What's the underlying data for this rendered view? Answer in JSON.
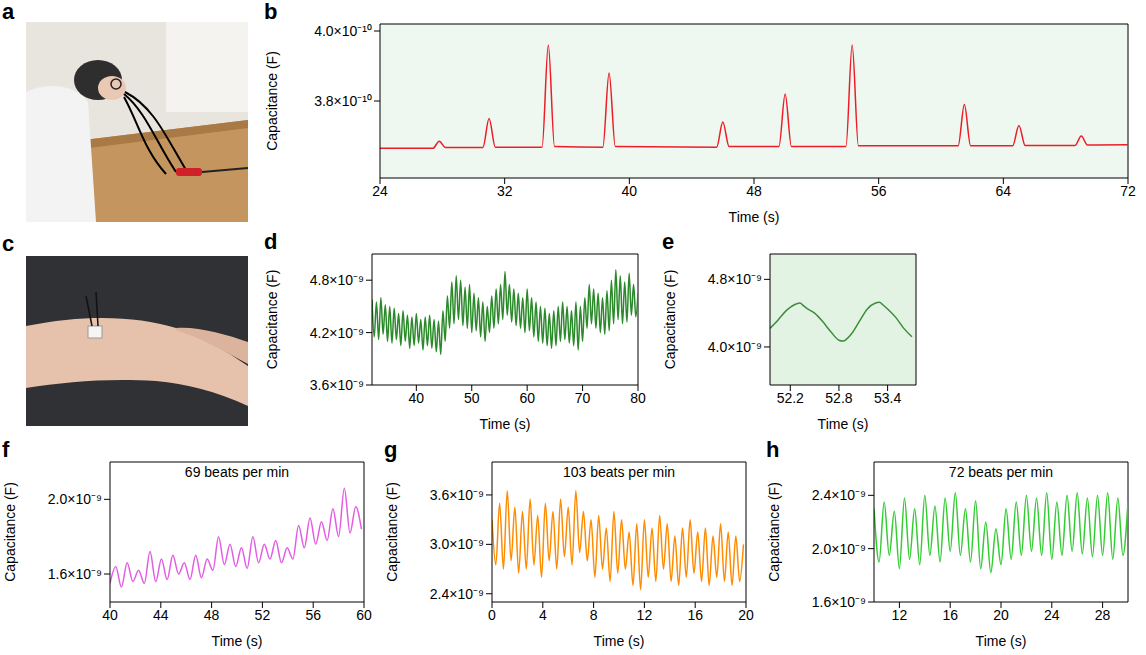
{
  "chart_data": [
    {
      "type": "image",
      "panel": "a"
    },
    {
      "type": "line",
      "panel": "b",
      "xlabel": "Time (s)",
      "ylabel": "Capacitance (F)",
      "color": "#ee1c25",
      "x": [
        24,
        27.4,
        27.8,
        28.2,
        30.6,
        31.0,
        31.4,
        34.4,
        34.8,
        35.2,
        38.3,
        38.7,
        39.1,
        45.6,
        46.0,
        46.4,
        49.6,
        50.0,
        50.4,
        53.9,
        54.3,
        54.7,
        61.1,
        61.5,
        61.9,
        64.6,
        65.0,
        65.4,
        68.6,
        69.0,
        69.4,
        72
      ],
      "values": [
        3.665e-10,
        3.665e-10,
        3.685e-10,
        3.667e-10,
        3.667e-10,
        3.75e-10,
        3.668e-10,
        3.668e-10,
        3.96e-10,
        3.67e-10,
        3.668e-10,
        3.88e-10,
        3.67e-10,
        3.668e-10,
        3.74e-10,
        3.67e-10,
        3.67e-10,
        3.82e-10,
        3.67e-10,
        3.67e-10,
        3.96e-10,
        3.672e-10,
        3.672e-10,
        3.79e-10,
        3.672e-10,
        3.672e-10,
        3.73e-10,
        3.673e-10,
        3.673e-10,
        3.7e-10,
        3.674e-10,
        3.675e-10
      ],
      "xlim": [
        24,
        72
      ],
      "xticks": [
        24,
        32,
        40,
        48,
        56,
        64,
        72
      ],
      "ylim": [
        3.58e-10,
        4.02e-10
      ],
      "yticks": [
        {
          "value": 3.8e-10,
          "label": "3.8×10⁻¹⁰"
        },
        {
          "value": 4e-10,
          "label": "4.0×10⁻¹⁰"
        }
      ]
    },
    {
      "type": "image",
      "panel": "c"
    },
    {
      "type": "line",
      "panel": "d",
      "xlabel": "Time (s)",
      "ylabel": "Capacitance (F)",
      "color": "#2a8a2a",
      "x": [
        32,
        32.4,
        32.8,
        33.2,
        33.6,
        34,
        34.4,
        34.8,
        35.2,
        35.6,
        36,
        36.4,
        36.8,
        37.2,
        37.6,
        38,
        38.4,
        38.8,
        39.2,
        39.6,
        40,
        40.4,
        40.8,
        41.2,
        41.6,
        42,
        42.4,
        42.8,
        43.2,
        43.6,
        44,
        44.4,
        44.8,
        45.2,
        45.6,
        46,
        46.4,
        46.8,
        47.2,
        47.6,
        48,
        48.4,
        48.8,
        49.2,
        49.6,
        50,
        50.4,
        50.8,
        51.2,
        51.6,
        52,
        52.4,
        52.8,
        53.2,
        53.6,
        54,
        54.4,
        54.8,
        55.2,
        55.6,
        56,
        56.4,
        56.8,
        57.2,
        57.6,
        58,
        58.4,
        58.8,
        59.2,
        59.6,
        60,
        60.4,
        60.8,
        61.2,
        61.6,
        62,
        62.4,
        62.8,
        63.2,
        63.6,
        64,
        64.4,
        64.8,
        65.2,
        65.6,
        66,
        66.4,
        66.8,
        67.2,
        67.6,
        68,
        68.4,
        68.8,
        69.2,
        69.6,
        70,
        70.4,
        70.8,
        71.2,
        71.6,
        72,
        72.4,
        72.8,
        73.2,
        73.6,
        74,
        74.4,
        74.8,
        75.2,
        75.6,
        76,
        76.4,
        76.8,
        77.2,
        77.6,
        78,
        78.4,
        78.8,
        79.2,
        79.6,
        80
      ],
      "values": [
        4.58e-09,
        4.15e-09,
        4.55e-09,
        4.12e-09,
        4.6e-09,
        4.18e-09,
        4.52e-09,
        4.1e-09,
        4.5e-09,
        4.08e-09,
        4.48e-09,
        4.12e-09,
        4.42e-09,
        4.05e-09,
        4.45e-09,
        4.1e-09,
        4.4e-09,
        4.02e-09,
        4.38e-09,
        4.05e-09,
        4.42e-09,
        4.08e-09,
        4.35e-09,
        4e-09,
        4.38e-09,
        4.05e-09,
        4.4e-09,
        4.02e-09,
        4.35e-09,
        3.98e-09,
        4.33e-09,
        3.95e-09,
        4.45e-09,
        4.1e-09,
        4.62e-09,
        4.25e-09,
        4.78e-09,
        4.3e-09,
        4.85e-09,
        4.35e-09,
        4.8e-09,
        4.28e-09,
        4.72e-09,
        4.25e-09,
        4.75e-09,
        4.2e-09,
        4.65e-09,
        4.22e-09,
        4.6e-09,
        4.15e-09,
        4.55e-09,
        4.1e-09,
        4.5e-09,
        4.2e-09,
        4.62e-09,
        4.25e-09,
        4.7e-09,
        4.3e-09,
        4.75e-09,
        4.35e-09,
        4.9e-09,
        4.4e-09,
        4.75e-09,
        4.32e-09,
        4.7e-09,
        4.28e-09,
        4.65e-09,
        4.25e-09,
        4.6e-09,
        4.2e-09,
        4.7e-09,
        4.22e-09,
        4.6e-09,
        4.15e-09,
        4.55e-09,
        4.1e-09,
        4.5e-09,
        4.08e-09,
        4.48e-09,
        4.05e-09,
        4.42e-09,
        4.02e-09,
        4.45e-09,
        4.05e-09,
        4.5e-09,
        4.1e-09,
        4.55e-09,
        4.12e-09,
        4.5e-09,
        4.08e-09,
        4.45e-09,
        4.05e-09,
        4.55e-09,
        4e-09,
        4.5e-09,
        4.1e-09,
        4.6e-09,
        4.25e-09,
        4.75e-09,
        4.3e-09,
        4.7e-09,
        4.25e-09,
        4.65e-09,
        4.2e-09,
        4.6e-09,
        4.18e-09,
        4.68e-09,
        4.22e-09,
        4.8e-09,
        4.3e-09,
        4.92e-09,
        4.35e-09,
        4.85e-09,
        4.3e-09,
        4.78e-09,
        4.32e-09,
        4.88e-09,
        4.4e-09,
        4.75e-09,
        4.38e-09,
        4.65e-09
      ],
      "xlim": [
        32,
        80
      ],
      "xticks": [
        40,
        50,
        60,
        70,
        80
      ],
      "ylim": [
        3.6e-09,
        5.1e-09
      ],
      "yticks": [
        {
          "value": 3.6e-09,
          "label": "3.6×10⁻⁹"
        },
        {
          "value": 4.2e-09,
          "label": "4.2×10⁻⁹"
        },
        {
          "value": 4.8e-09,
          "label": "4.8×10⁻⁹"
        }
      ]
    },
    {
      "type": "line",
      "panel": "e",
      "xlabel": "Time (s)",
      "ylabel": "Capacitance (F)",
      "color": "#3c8c3c",
      "x": [
        51.95,
        52.05,
        52.15,
        52.25,
        52.32,
        52.36,
        52.4,
        52.5,
        52.6,
        52.7,
        52.8,
        52.85,
        52.95,
        53.05,
        53.15,
        53.25,
        53.3,
        53.34,
        53.4,
        53.5,
        53.6,
        53.7
      ],
      "values": [
        4.22e-09,
        4.32e-09,
        4.43e-09,
        4.5e-09,
        4.52e-09,
        4.49e-09,
        4.46e-09,
        4.4e-09,
        4.3e-09,
        4.18e-09,
        4.08e-09,
        4.07e-09,
        4.15e-09,
        4.3e-09,
        4.45e-09,
        4.52e-09,
        4.53e-09,
        4.5e-09,
        4.45e-09,
        4.35e-09,
        4.22e-09,
        4.12e-09
      ],
      "xlim": [
        51.95,
        53.75
      ],
      "xticks": [
        52.2,
        52.8,
        53.4
      ],
      "ylim": [
        3.55e-09,
        5.1e-09
      ],
      "yticks": [
        {
          "value": 4e-09,
          "label": "4.0×10⁻⁹"
        },
        {
          "value": 4.8e-09,
          "label": "4.8×10⁻⁹"
        }
      ]
    },
    {
      "type": "line",
      "panel": "f",
      "xlabel": "Time (s)",
      "ylabel": "Capacitance (F)",
      "color": "#e35ce3",
      "annotations": [
        "69 beats per min"
      ],
      "x": [
        40,
        40.45,
        40.9,
        41.35,
        41.8,
        42.25,
        42.7,
        43.15,
        43.6,
        44.05,
        44.5,
        44.95,
        45.4,
        45.85,
        46.3,
        46.75,
        47.2,
        47.65,
        48.1,
        48.55,
        49,
        49.45,
        49.9,
        50.35,
        50.8,
        51.25,
        51.7,
        52.15,
        52.6,
        53.05,
        53.5,
        53.95,
        54.4,
        54.85,
        55.3,
        55.75,
        56.2,
        56.65,
        57.1,
        57.55,
        58,
        58.45,
        58.9,
        59.35,
        59.8
      ],
      "values": [
        1.55e-09,
        1.64e-09,
        1.53e-09,
        1.66e-09,
        1.56e-09,
        1.62e-09,
        1.55e-09,
        1.72e-09,
        1.56e-09,
        1.68e-09,
        1.57e-09,
        1.7e-09,
        1.6e-09,
        1.66e-09,
        1.57e-09,
        1.7e-09,
        1.58e-09,
        1.68e-09,
        1.62e-09,
        1.8e-09,
        1.65e-09,
        1.76e-09,
        1.64e-09,
        1.74e-09,
        1.63e-09,
        1.8e-09,
        1.66e-09,
        1.76e-09,
        1.68e-09,
        1.78e-09,
        1.66e-09,
        1.74e-09,
        1.68e-09,
        1.86e-09,
        1.74e-09,
        1.9e-09,
        1.76e-09,
        1.88e-09,
        1.78e-09,
        1.95e-09,
        1.8e-09,
        2.06e-09,
        1.82e-09,
        1.96e-09,
        1.84e-09
      ],
      "xlim": [
        40,
        60
      ],
      "xticks": [
        40,
        44,
        48,
        52,
        56,
        60
      ],
      "ylim": [
        1.45e-09,
        2.2e-09
      ],
      "yticks": [
        {
          "value": 1.6e-09,
          "label": "1.6×10⁻⁹"
        },
        {
          "value": 2e-09,
          "label": "2.0×10⁻⁹"
        }
      ]
    },
    {
      "type": "line",
      "panel": "g",
      "xlabel": "Time (s)",
      "ylabel": "Capacitance (F)",
      "color": "#ff8c00",
      "annotations": [
        "103 beats per min"
      ],
      "x": [
        0,
        0.3,
        0.6,
        0.9,
        1.2,
        1.5,
        1.8,
        2.1,
        2.4,
        2.7,
        3.0,
        3.3,
        3.6,
        3.9,
        4.2,
        4.5,
        4.8,
        5.1,
        5.4,
        5.7,
        6.0,
        6.3,
        6.6,
        6.9,
        7.2,
        7.5,
        7.8,
        8.1,
        8.4,
        8.7,
        9.0,
        9.3,
        9.6,
        9.9,
        10.2,
        10.5,
        10.8,
        11.1,
        11.4,
        11.7,
        12.0,
        12.3,
        12.6,
        12.9,
        13.2,
        13.5,
        13.8,
        14.1,
        14.4,
        14.7,
        15.0,
        15.3,
        15.6,
        15.9,
        16.2,
        16.5,
        16.8,
        17.1,
        17.4,
        17.7,
        18.0,
        18.3,
        18.6,
        18.9,
        19.2,
        19.5,
        19.8
      ],
      "values": [
        3.3e-09,
        2.75e-09,
        3.5e-09,
        2.7e-09,
        3.65e-09,
        2.8e-09,
        3.45e-09,
        2.65e-09,
        3.4e-09,
        2.7e-09,
        3.55e-09,
        2.75e-09,
        3.35e-09,
        2.6e-09,
        3.5e-09,
        2.8e-09,
        3.4e-09,
        2.7e-09,
        3.55e-09,
        2.85e-09,
        3.45e-09,
        2.75e-09,
        3.65e-09,
        2.9e-09,
        3.4e-09,
        2.8e-09,
        3.3e-09,
        2.6e-09,
        3.35e-09,
        2.7e-09,
        3.2e-09,
        2.55e-09,
        3.4e-09,
        2.65e-09,
        3.3e-09,
        2.7e-09,
        3.15e-09,
        2.5e-09,
        3.25e-09,
        2.45e-09,
        3.3e-09,
        2.6e-09,
        3.2e-09,
        2.55e-09,
        3.35e-09,
        2.7e-09,
        3.25e-09,
        2.55e-09,
        3.1e-09,
        2.5e-09,
        3.2e-09,
        2.6e-09,
        3.3e-09,
        2.65e-09,
        3.15e-09,
        2.55e-09,
        3.2e-09,
        2.5e-09,
        3.1e-09,
        2.6e-09,
        3.25e-09,
        2.55e-09,
        3.15e-09,
        2.5e-09,
        3.1e-09,
        2.55e-09,
        3e-09
      ],
      "xlim": [
        0,
        20
      ],
      "xticks": [
        0,
        4,
        8,
        12,
        16,
        20
      ],
      "ylim": [
        2.3e-09,
        4e-09
      ],
      "yticks": [
        {
          "value": 2.4e-09,
          "label": "2.4×10⁻⁹"
        },
        {
          "value": 3e-09,
          "label": "3.0×10⁻⁹"
        },
        {
          "value": 3.6e-09,
          "label": "3.6×10⁻⁹"
        }
      ]
    },
    {
      "type": "line",
      "panel": "h",
      "xlabel": "Time (s)",
      "ylabel": "Capacitance (F)",
      "color": "#33cc33",
      "annotations": [
        "72 beats per min"
      ],
      "x": [
        10,
        10.4,
        10.8,
        11.2,
        11.6,
        12.0,
        12.4,
        12.8,
        13.2,
        13.6,
        14.0,
        14.4,
        14.8,
        15.2,
        15.6,
        16.0,
        16.4,
        16.8,
        17.2,
        17.6,
        18.0,
        18.4,
        18.8,
        19.2,
        19.6,
        20.0,
        20.4,
        20.8,
        21.2,
        21.6,
        22.0,
        22.4,
        22.8,
        23.2,
        23.6,
        24.0,
        24.4,
        24.8,
        25.2,
        25.6,
        26.0,
        26.4,
        26.8,
        27.2,
        27.6,
        28.0,
        28.4,
        28.8,
        29.2,
        29.6,
        30.0
      ],
      "values": [
        2.3e-09,
        1.9e-09,
        2.35e-09,
        1.95e-09,
        2.28e-09,
        1.85e-09,
        2.38e-09,
        1.92e-09,
        2.3e-09,
        1.88e-09,
        2.4e-09,
        1.95e-09,
        2.32e-09,
        1.9e-09,
        2.38e-09,
        1.98e-09,
        2.42e-09,
        1.95e-09,
        2.3e-09,
        1.9e-09,
        2.36e-09,
        1.85e-09,
        2.2e-09,
        1.82e-09,
        2.15e-09,
        1.88e-09,
        2.3e-09,
        1.92e-09,
        2.35e-09,
        1.95e-09,
        2.4e-09,
        1.98e-09,
        2.38e-09,
        1.95e-09,
        2.42e-09,
        1.92e-09,
        2.35e-09,
        1.95e-09,
        2.4e-09,
        1.98e-09,
        2.42e-09,
        1.96e-09,
        2.38e-09,
        1.94e-09,
        2.4e-09,
        1.95e-09,
        2.42e-09,
        1.92e-09,
        2.38e-09,
        1.95e-09,
        2.35e-09
      ],
      "xlim": [
        10,
        30
      ],
      "xticks": [
        12,
        16,
        20,
        24,
        28
      ],
      "ylim": [
        1.6e-09,
        2.65e-09
      ],
      "yticks": [
        {
          "value": 1.6e-09,
          "label": "1.6×10⁻⁹"
        },
        {
          "value": 2e-09,
          "label": "2.0×10⁻⁹"
        },
        {
          "value": 2.4e-09,
          "label": "2.4×10⁻⁹"
        }
      ]
    }
  ]
}
